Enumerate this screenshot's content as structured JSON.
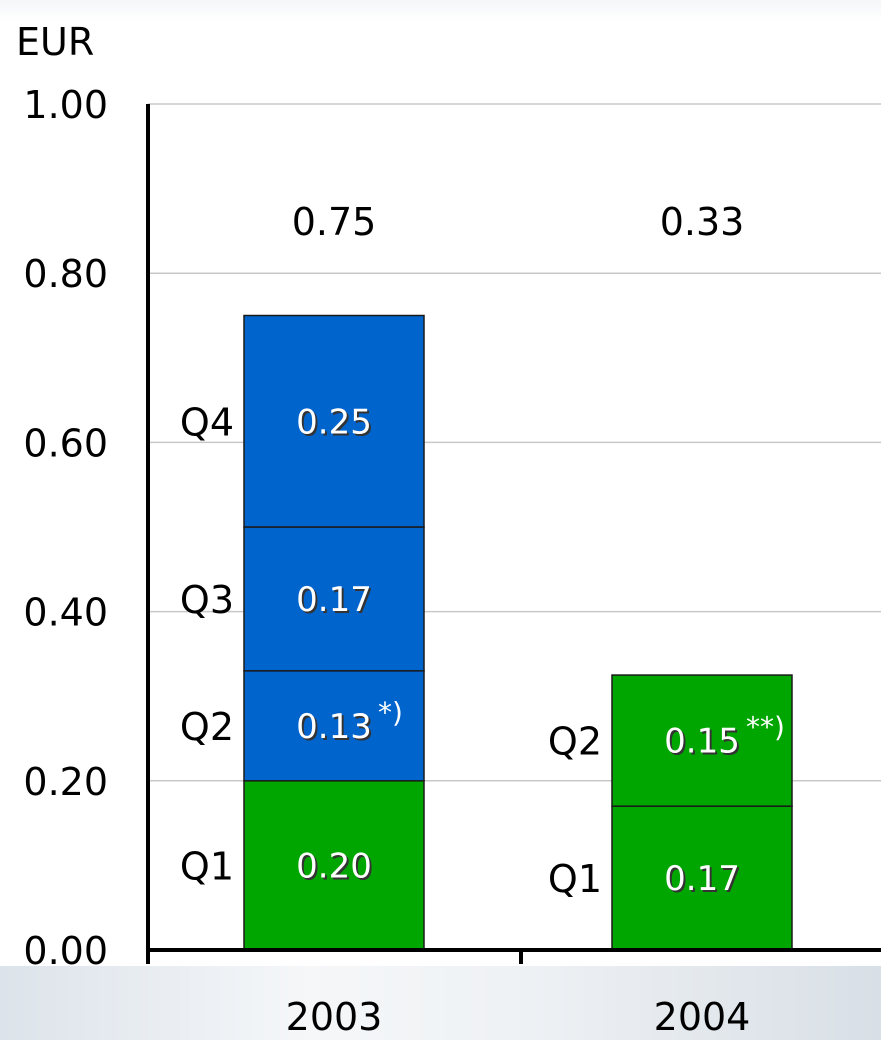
{
  "chart_data": {
    "type": "bar",
    "stacked": true,
    "unit_label": "EUR",
    "categories": [
      "2003",
      "2004"
    ],
    "ylim": [
      0,
      1.0
    ],
    "yticks": [
      "0.00",
      "0.20",
      "0.40",
      "0.60",
      "0.80",
      "1.00"
    ],
    "grid": true,
    "totals": [
      "0.75",
      "0.33"
    ],
    "stacks": [
      {
        "category": "2003",
        "segments": [
          {
            "quarter": "Q1",
            "value": 0.2,
            "label": "0.20",
            "footnote": "",
            "color": "#00a600"
          },
          {
            "quarter": "Q2",
            "value": 0.13,
            "label": "0.13",
            "footnote": "*)",
            "color": "#0064cd"
          },
          {
            "quarter": "Q3",
            "value": 0.17,
            "label": "0.17",
            "footnote": "",
            "color": "#0064cd"
          },
          {
            "quarter": "Q4",
            "value": 0.25,
            "label": "0.25",
            "footnote": "",
            "color": "#0064cd"
          }
        ]
      },
      {
        "category": "2004",
        "segments": [
          {
            "quarter": "Q1",
            "value": 0.17,
            "label": "0.17",
            "footnote": "",
            "color": "#00a600"
          },
          {
            "quarter": "Q2",
            "value": 0.155,
            "label": "0.15",
            "footnote": "**)",
            "color": "#00a600"
          }
        ]
      }
    ]
  }
}
